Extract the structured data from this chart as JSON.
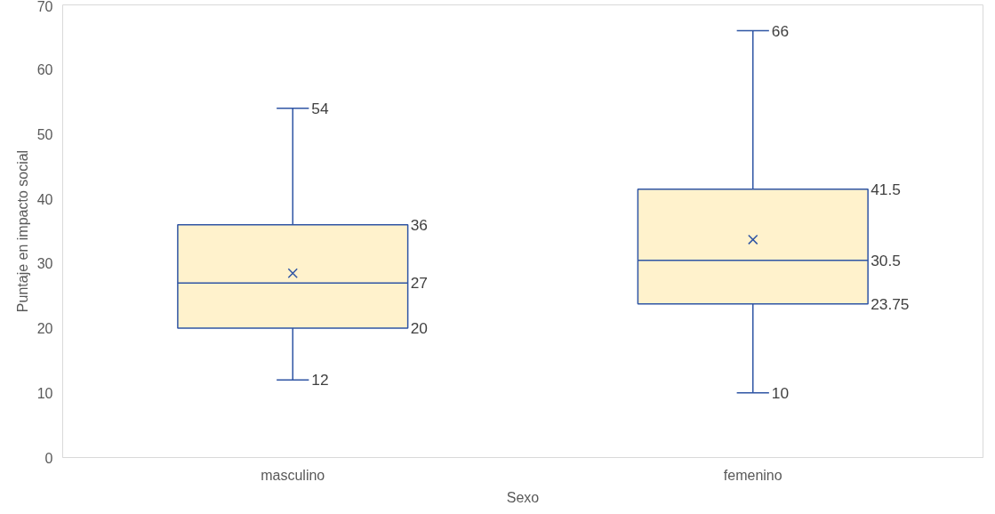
{
  "chart_data": {
    "type": "box",
    "xlabel": "Sexo",
    "ylabel": "Puntaje en impacto social",
    "categories": [
      "masculino",
      "femenino"
    ],
    "boxes": [
      {
        "low": 12,
        "q1": 20,
        "median": 27,
        "q3": 36,
        "high": 54,
        "mean": 28.5
      },
      {
        "low": 10,
        "q1": 23.75,
        "median": 30.5,
        "q3": 41.5,
        "high": 66,
        "mean": 33.7
      }
    ],
    "color": "#2f55a4",
    "colors": [
      "#fff2cc",
      "#fff2cc"
    ],
    "ylim": [
      0,
      70
    ],
    "yticks": [
      0,
      10,
      20,
      30,
      40,
      50,
      60,
      70
    ],
    "grid": false,
    "annotations": [
      {
        "text": "54",
        "x": "masculino",
        "y": 54
      },
      "36",
      "27",
      "20",
      {
        "text": "12",
        "x": "masculino",
        "y": 12
      },
      {
        "text": "66",
        "x": "femenino",
        "y": 66
      },
      "41.5",
      "30.5",
      "23.75",
      {
        "text": "10",
        "x": "femenino",
        "y": 10
      }
    ]
  }
}
